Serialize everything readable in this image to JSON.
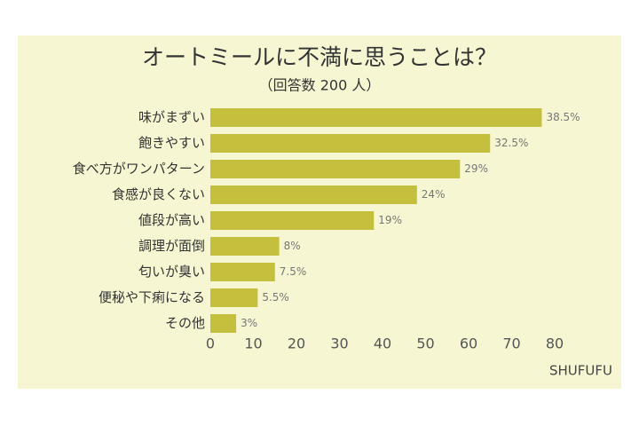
{
  "chart_data": {
    "type": "barh",
    "title": "オートミールに不満に思うことは？",
    "subtitle": "（回答数 200 人）",
    "categories": [
      "味がまずい",
      "飽きやすい",
      "食べ方がワンパターン",
      "食感が良くない",
      "値段が高い",
      "調理が面倒",
      "匂いが臭い",
      "便秘や下痢になる",
      "その他"
    ],
    "values": [
      77,
      65,
      58,
      48,
      38,
      16,
      15,
      11,
      6
    ],
    "value_labels": [
      "38.5%",
      "32.5%",
      "29%",
      "24%",
      "19%",
      "8%",
      "7.5%",
      "5.5%",
      "3%"
    ],
    "color": "#c4bf3c",
    "xlim": [
      0,
      80
    ],
    "xticks": [
      0,
      10,
      20,
      30,
      40,
      50,
      60,
      70,
      80
    ],
    "grid": false,
    "source": "SHUFUFU"
  }
}
